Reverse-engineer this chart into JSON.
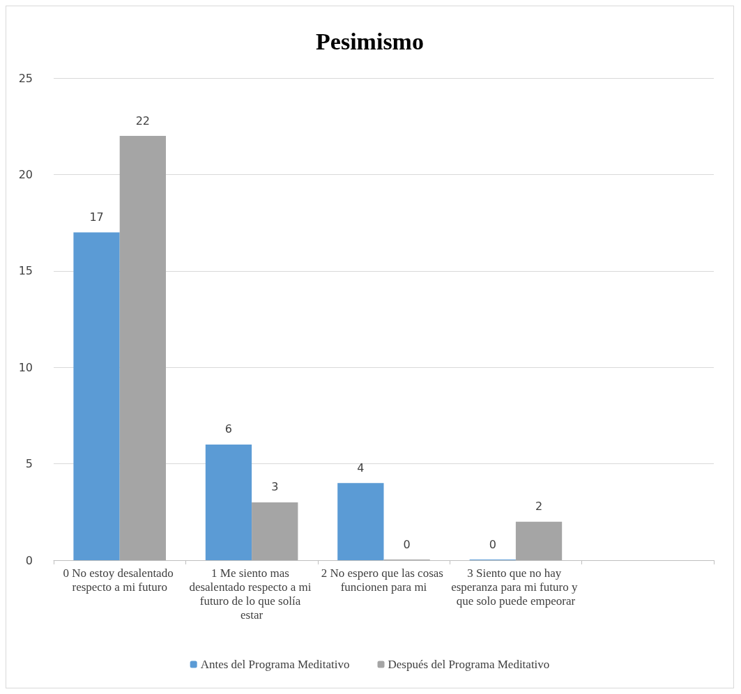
{
  "chart_data": {
    "type": "bar",
    "title": "Pesimismo",
    "categories": [
      "0 No estoy desalentado respecto a mi futuro",
      "1 Me siento mas desalentado respecto a mi futuro de lo que solía estar",
      "2 No espero que las cosas funcionen para mi",
      "3 Siento que no hay esperanza para mi futuro y que solo puede empeorar",
      null
    ],
    "series": [
      {
        "name": "Antes del Programa Meditativo",
        "color": "#5b9bd5",
        "values": [
          17,
          6,
          4,
          0,
          null
        ]
      },
      {
        "name": "Después del Programa Meditativo",
        "color": "#a5a5a5",
        "values": [
          22,
          3,
          0,
          2,
          null
        ]
      }
    ],
    "ylim": [
      0,
      25
    ],
    "yticks": [
      0,
      5,
      10,
      15,
      20,
      25
    ],
    "grid": "y",
    "legend": "bottom",
    "data_labels": true
  }
}
